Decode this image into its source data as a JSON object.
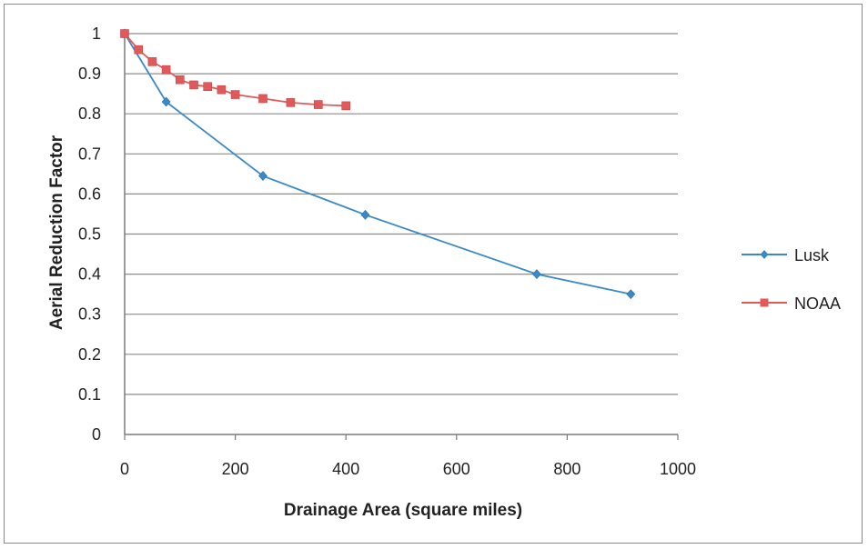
{
  "chart_data": {
    "type": "line",
    "title": "",
    "xlabel": "Drainage Area (square miles)",
    "ylabel": "Aerial Reduction Factor",
    "xlim": [
      0,
      1000
    ],
    "ylim": [
      0,
      1
    ],
    "xticks": [
      "0",
      "200",
      "400",
      "600",
      "800",
      "1000"
    ],
    "yticks": [
      "0",
      "0.1",
      "0.2",
      "0.3",
      "0.4",
      "0.5",
      "0.6",
      "0.7",
      "0.8",
      "0.9",
      "1"
    ],
    "grid": "horizontal",
    "legend_position": "right",
    "series": [
      {
        "name": "Lusk",
        "color": "#3a8ac8",
        "marker": "diamond",
        "x": [
          0,
          75,
          250,
          435,
          745,
          915
        ],
        "y": [
          1.0,
          0.83,
          0.645,
          0.548,
          0.4,
          0.35
        ]
      },
      {
        "name": "NOAA",
        "color": "#e05a5a",
        "marker": "square",
        "x": [
          0,
          25,
          50,
          75,
          100,
          125,
          150,
          175,
          200,
          250,
          300,
          350,
          400
        ],
        "y": [
          1.0,
          0.96,
          0.93,
          0.91,
          0.885,
          0.872,
          0.868,
          0.86,
          0.848,
          0.838,
          0.828,
          0.823,
          0.82
        ]
      }
    ]
  }
}
